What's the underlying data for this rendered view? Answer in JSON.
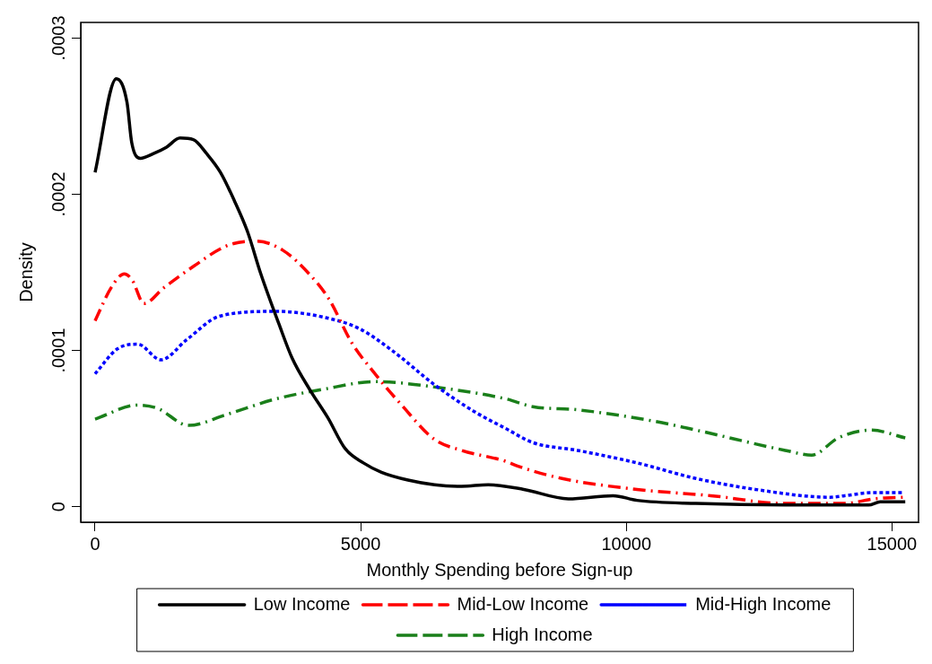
{
  "chart_data": {
    "type": "line",
    "xlabel": "Monthly Spending before Sign-up",
    "ylabel": "Density",
    "xlim": [
      -270,
      15500
    ],
    "ylim": [
      -1e-05,
      0.00031
    ],
    "xticks": [
      0,
      5000,
      10000,
      15000
    ],
    "yticks": [
      {
        "value": 0,
        "label": "0"
      },
      {
        "value": 0.0001,
        "label": ".0001"
      },
      {
        "value": 0.0002,
        "label": ".0002"
      },
      {
        "value": 0.0003,
        "label": ".0003"
      }
    ],
    "grid": false,
    "legend": "bottom",
    "marker": "none",
    "series": [
      {
        "name": "Low Income",
        "color": "#000000",
        "line_style": "solid",
        "x": [
          0,
          400,
          600,
          690,
          850,
          1100,
          1340,
          1600,
          1850,
          2100,
          2360,
          2620,
          2870,
          3120,
          3460,
          3710,
          4040,
          4380,
          4710,
          5050,
          5390,
          5890,
          6390,
          6900,
          7400,
          8070,
          8910,
          9750,
          10200,
          11310,
          12990,
          14560,
          14780,
          15250
        ],
        "values": [
          0.000214,
          0.000274,
          0.000259,
          0.000233,
          0.000223,
          0.000226,
          0.00023,
          0.000236,
          0.000235,
          0.000226,
          0.000214,
          0.000196,
          0.000176,
          0.000149,
          0.000117,
          9.5e-05,
          7.5e-05,
          5.7e-05,
          3.7e-05,
          2.8e-05,
          2.2e-05,
          1.7e-05,
          1.4e-05,
          1.3e-05,
          1.4e-05,
          1.1e-05,
          5e-06,
          7e-06,
          4e-06,
          2e-06,
          1e-06,
          1e-06,
          3e-06,
          3e-06
        ]
      },
      {
        "name": "Mid-Low Income",
        "color": "#ff0000",
        "line_style": "dashed",
        "x": [
          0,
          300,
          550,
          700,
          920,
          1290,
          1860,
          2480,
          3040,
          3540,
          4030,
          4400,
          4830,
          5270,
          5770,
          6390,
          6900,
          7730,
          7950,
          8790,
          10200,
          11590,
          12990,
          14110,
          14660,
          15230
        ],
        "values": [
          0.000119,
          0.00014,
          0.000149,
          0.000145,
          0.00013,
          0.00014,
          0.000154,
          0.000167,
          0.00017,
          0.000164,
          0.000149,
          0.000133,
          0.000105,
          8.5e-05,
          6.5e-05,
          4.3e-05,
          3.6e-05,
          2.9e-05,
          2.6e-05,
          1.8e-05,
          1.1e-05,
          7e-06,
          2e-06,
          2e-06,
          5e-06,
          6e-06
        ]
      },
      {
        "name": "Mid-High Income",
        "color": "#0000ff",
        "line_style": "dotted",
        "x": [
          0,
          420,
          800,
          1240,
          1730,
          2350,
          3410,
          4340,
          4970,
          5590,
          6390,
          7130,
          7730,
          8240,
          9080,
          10200,
          11310,
          12430,
          13830,
          14110,
          14660,
          15230
        ],
        "values": [
          8.5e-05,
          0.000101,
          0.000104,
          9.4e-05,
          0.000107,
          0.000122,
          0.000125,
          0.000121,
          0.000114,
          0.0001,
          7.8e-05,
          6.1e-05,
          5e-05,
          4.1e-05,
          3.6e-05,
          2.8e-05,
          1.8e-05,
          1.1e-05,
          6e-06,
          7e-06,
          9e-06,
          9e-06
        ]
      },
      {
        "name": "High Income",
        "color": "#1a7f1a",
        "line_style": "dashed",
        "x": [
          0,
          800,
          1170,
          1760,
          2480,
          3410,
          4280,
          5270,
          6510,
          7730,
          8240,
          9080,
          10470,
          11310,
          12990,
          13490,
          13990,
          14610,
          15250
        ],
        "values": [
          5.6e-05,
          6.5e-05,
          6.3e-05,
          5.2e-05,
          5.9e-05,
          6.9e-05,
          7.5e-05,
          8e-05,
          7.6e-05,
          6.9e-05,
          6.4e-05,
          6.2e-05,
          5.5e-05,
          4.9e-05,
          3.6e-05,
          3.3e-05,
          4.4e-05,
          4.9e-05,
          4.4e-05
        ]
      }
    ]
  }
}
